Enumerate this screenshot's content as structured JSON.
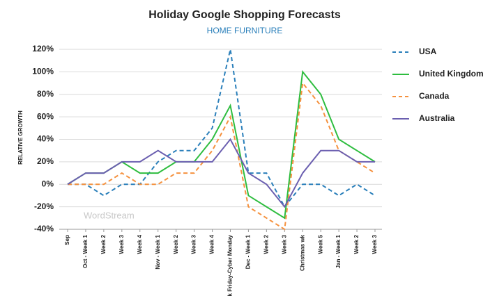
{
  "chart_data": {
    "type": "line",
    "title": "Holiday Google Shopping Forecasts",
    "subtitle": "HOME FURNITURE",
    "y_label": "RELATIVE GROWTH",
    "watermark": "WordStream",
    "categories": [
      "Sep",
      "Oct - Week 1",
      "Week 2",
      "Week 3",
      "Week 4",
      "Nov - Week 1",
      "Week 2",
      "Week 3",
      "Week 4",
      "Black Friday-Cyber Monday",
      "Dec - Week 1",
      "Week 2",
      "Week 3",
      "Christmas wk",
      "Week 5",
      "Jan - Week 1",
      "Week 2",
      "Week 3"
    ],
    "series": [
      {
        "name": "USA",
        "color": "#2a7fba",
        "dashed": true,
        "values": [
          0,
          0,
          -10,
          0,
          0,
          20,
          30,
          30,
          50,
          120,
          10,
          10,
          -20,
          0,
          0,
          -10,
          0,
          -10
        ]
      },
      {
        "name": "United Kingdom",
        "color": "#2ebd3f",
        "dashed": false,
        "values": [
          0,
          10,
          10,
          20,
          10,
          10,
          20,
          20,
          40,
          70,
          -10,
          -20,
          -30,
          100,
          80,
          40,
          30,
          20
        ]
      },
      {
        "name": "Canada",
        "color": "#f5913e",
        "dashed": true,
        "values": [
          0,
          0,
          0,
          10,
          0,
          0,
          10,
          10,
          30,
          60,
          -20,
          -30,
          -40,
          90,
          70,
          30,
          20,
          10
        ]
      },
      {
        "name": "Australia",
        "color": "#6b5fb0",
        "dashed": false,
        "values": [
          0,
          10,
          10,
          20,
          20,
          30,
          20,
          20,
          20,
          40,
          10,
          0,
          -20,
          10,
          30,
          30,
          20,
          20
        ]
      }
    ],
    "ylim": [
      -40,
      120
    ],
    "yticks": [
      {
        "value": -40,
        "label": "-40%"
      },
      {
        "value": -20,
        "label": "-20%"
      },
      {
        "value": 0,
        "label": "0%"
      },
      {
        "value": 20,
        "label": "20%"
      },
      {
        "value": 40,
        "label": "40%"
      },
      {
        "value": 60,
        "label": "60%"
      },
      {
        "value": 80,
        "label": "80%"
      },
      {
        "value": 100,
        "label": "100%"
      },
      {
        "value": 120,
        "label": "120%"
      }
    ],
    "grid": true,
    "legend": "right"
  }
}
